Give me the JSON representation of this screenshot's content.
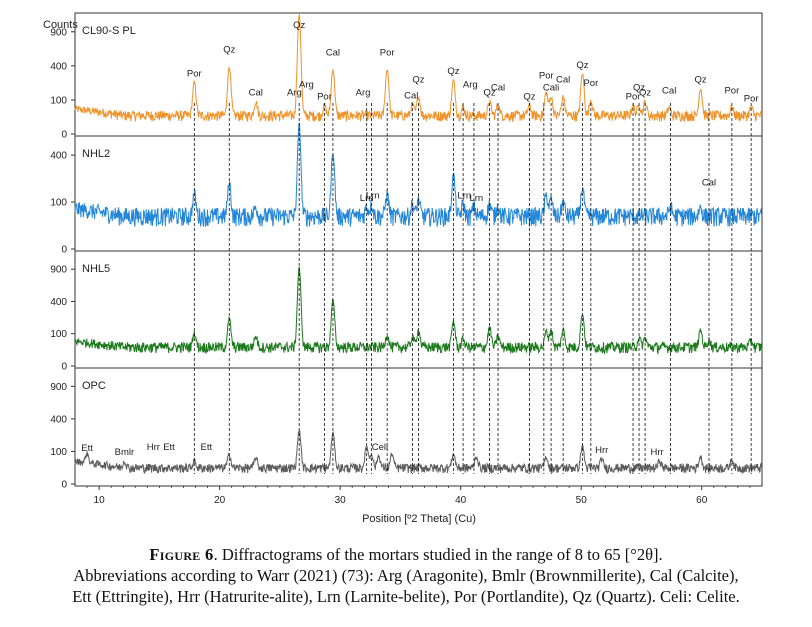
{
  "chart_data": {
    "type": "line",
    "y_axis_title": "Counts",
    "xlabel": "Position [º2 Theta] (Cu)",
    "xlim": [
      8,
      65
    ],
    "x_ticks": [
      10,
      20,
      30,
      40,
      50,
      60
    ],
    "colors": {
      "CL90-S PL": "#f0922a",
      "NHL2": "#2486d8",
      "NHL5": "#1c7a1c",
      "OPC": "#5b5b5b"
    },
    "panels": [
      {
        "name": "CL90-S PL",
        "y_ticks": [
          "0",
          "100",
          "400",
          "900"
        ],
        "baseline_counts": 30,
        "peaks": [
          [
            17.9,
            200
          ],
          [
            20.8,
            360
          ],
          [
            23.0,
            60
          ],
          [
            26.6,
            1200
          ],
          [
            28.7,
            40
          ],
          [
            29.4,
            330
          ],
          [
            33.9,
            330
          ],
          [
            36.0,
            45
          ],
          [
            36.5,
            90
          ],
          [
            39.4,
            220
          ],
          [
            40.2,
            30
          ],
          [
            42.4,
            60
          ],
          [
            43.1,
            45
          ],
          [
            45.7,
            40
          ],
          [
            47.1,
            120
          ],
          [
            47.5,
            90
          ],
          [
            48.5,
            90
          ],
          [
            50.1,
            280
          ],
          [
            50.8,
            70
          ],
          [
            54.3,
            40
          ],
          [
            54.8,
            45
          ],
          [
            55.3,
            60
          ],
          [
            57.3,
            30
          ],
          [
            59.9,
            150
          ],
          [
            62.5,
            30
          ],
          [
            64.1,
            30
          ]
        ],
        "annotations": [
          {
            "label": "Por",
            "x": 17.9
          },
          {
            "label": "Qz",
            "x": 20.8
          },
          {
            "label": "Cal",
            "x": 23.0
          },
          {
            "label": "Qz",
            "x": 26.6
          },
          {
            "label": "Arg",
            "x": 26.2
          },
          {
            "label": "Arg",
            "x": 27.2
          },
          {
            "label": "Por",
            "x": 28.7
          },
          {
            "label": "Cal",
            "x": 29.4
          },
          {
            "label": "Arg",
            "x": 31.9
          },
          {
            "label": "Por",
            "x": 33.9
          },
          {
            "label": "Cal",
            "x": 35.9
          },
          {
            "label": "Qz",
            "x": 36.5
          },
          {
            "label": "Qz",
            "x": 39.4
          },
          {
            "label": "Arg",
            "x": 40.8
          },
          {
            "label": "Qz",
            "x": 42.4
          },
          {
            "label": "Cal",
            "x": 43.1
          },
          {
            "label": "Qz",
            "x": 45.7
          },
          {
            "label": "Por",
            "x": 47.1
          },
          {
            "label": "Cali",
            "x": 47.5
          },
          {
            "label": "Cal",
            "x": 48.5
          },
          {
            "label": "Qz",
            "x": 50.1
          },
          {
            "label": "Por",
            "x": 50.8
          },
          {
            "label": "Por",
            "x": 54.3
          },
          {
            "label": "Qz",
            "x": 54.8
          },
          {
            "label": "Qz",
            "x": 55.3
          },
          {
            "label": "Cal",
            "x": 57.3
          },
          {
            "label": "Qz",
            "x": 59.9
          },
          {
            "label": "Por",
            "x": 62.5
          },
          {
            "label": "Por",
            "x": 64.1
          }
        ]
      },
      {
        "name": "NHL2",
        "y_ticks": [
          "0",
          "100",
          "400"
        ],
        "baseline_counts": 50,
        "peaks": [
          [
            17.9,
            90
          ],
          [
            20.8,
            150
          ],
          [
            23.0,
            30
          ],
          [
            26.6,
            650
          ],
          [
            29.4,
            380
          ],
          [
            32.2,
            30
          ],
          [
            32.6,
            40
          ],
          [
            33.9,
            90
          ],
          [
            36.0,
            40
          ],
          [
            36.5,
            60
          ],
          [
            39.4,
            200
          ],
          [
            40.2,
            40
          ],
          [
            41.1,
            30
          ],
          [
            42.4,
            40
          ],
          [
            43.1,
            35
          ],
          [
            47.1,
            80
          ],
          [
            47.5,
            60
          ],
          [
            48.5,
            50
          ],
          [
            50.1,
            120
          ],
          [
            57.4,
            30
          ],
          [
            59.9,
            30
          ]
        ],
        "annotations": [
          {
            "label": "Lrn",
            "x": 32.2
          },
          {
            "label": "Lrn",
            "x": 32.7
          },
          {
            "label": "Lrn",
            "x": 40.3
          },
          {
            "label": "Lrn",
            "x": 41.3
          },
          {
            "label": "Cal",
            "x": 60.6
          }
        ]
      },
      {
        "name": "NHL5",
        "y_ticks": [
          "0",
          "100",
          "400",
          "900"
        ],
        "baseline_counts": 35,
        "peaks": [
          [
            17.9,
            70
          ],
          [
            20.8,
            180
          ],
          [
            23.0,
            50
          ],
          [
            26.6,
            900
          ],
          [
            29.4,
            380
          ],
          [
            33.9,
            60
          ],
          [
            36.0,
            45
          ],
          [
            36.5,
            90
          ],
          [
            39.4,
            160
          ],
          [
            40.2,
            35
          ],
          [
            42.4,
            110
          ],
          [
            43.1,
            50
          ],
          [
            47.1,
            80
          ],
          [
            47.5,
            90
          ],
          [
            48.5,
            90
          ],
          [
            50.1,
            230
          ],
          [
            54.8,
            40
          ],
          [
            55.3,
            40
          ],
          [
            59.9,
            90
          ],
          [
            60.6,
            30
          ],
          [
            64.1,
            30
          ]
        ],
        "annotations": []
      },
      {
        "name": "OPC",
        "y_ticks": [
          "0",
          "100",
          "400",
          "900"
        ],
        "baseline_counts": 25,
        "peaks": [
          [
            9.0,
            45
          ],
          [
            12.1,
            25
          ],
          [
            17.9,
            25
          ],
          [
            20.8,
            60
          ],
          [
            23.0,
            40
          ],
          [
            26.6,
            250
          ],
          [
            29.4,
            220
          ],
          [
            32.2,
            110
          ],
          [
            32.6,
            60
          ],
          [
            33.2,
            50
          ],
          [
            34.3,
            60
          ],
          [
            39.4,
            60
          ],
          [
            41.3,
            45
          ],
          [
            47.1,
            45
          ],
          [
            50.1,
            110
          ],
          [
            51.7,
            35
          ],
          [
            56.5,
            25
          ],
          [
            59.9,
            45
          ],
          [
            62.5,
            30
          ]
        ],
        "annotations": [
          {
            "label": "Ett",
            "x": 9.0
          },
          {
            "label": "Bmlr",
            "x": 12.1
          },
          {
            "label": "Hrr",
            "x": 14.5
          },
          {
            "label": "Ett",
            "x": 15.8
          },
          {
            "label": "Ett",
            "x": 18.9
          },
          {
            "label": "Celi",
            "x": 33.3
          },
          {
            "label": "Hrr",
            "x": 51.7
          },
          {
            "label": "Hrr",
            "x": 56.3
          }
        ]
      }
    ],
    "reference_lines_2theta": [
      17.9,
      20.8,
      26.6,
      28.7,
      29.4,
      32.2,
      32.6,
      33.9,
      36.0,
      36.5,
      39.4,
      40.2,
      41.1,
      42.4,
      43.1,
      45.7,
      46.9,
      47.5,
      48.5,
      50.1,
      50.8,
      54.3,
      54.8,
      55.3,
      57.4,
      60.6,
      62.5,
      64.1
    ]
  },
  "caption": {
    "label": "Figure 6",
    "line1": ". Diffractograms of the mortars studied in the range of 8 to 65 [°2θ].",
    "line2": "Abbreviations according to Warr (2021) (73): Arg (Aragonite), Bmlr (Brownmillerite), Cal (Calcite),",
    "line3": "Ett (Ettringite), Hrr (Hatrurite-alite), Lrn (Larnite-belite), Por (Portlandite), Qz (Quartz). Celi: Celite."
  }
}
